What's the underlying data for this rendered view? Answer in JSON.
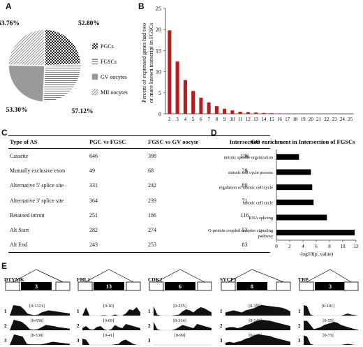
{
  "panels": {
    "a": "A",
    "b": "B",
    "c": "C",
    "d": "D",
    "e": "E"
  },
  "chart_data": [
    {
      "type": "pie",
      "categories": [
        "PGCs",
        "FGSCs",
        "GV oocytes",
        "MII oocytes"
      ],
      "values": [
        52.8,
        57.12,
        53.3,
        53.76
      ],
      "labels": [
        "52.80%",
        "57.12%",
        "53.30%",
        "53.76%"
      ],
      "colors": {
        "pgc": "#2b2b2b",
        "fgsc": "#cfcfcf",
        "gv": "#9a9a9a",
        "mii": "#e8e8e8"
      }
    },
    {
      "type": "bar",
      "categories": [
        "2",
        "3",
        "4",
        "5",
        "6",
        "7",
        "8",
        "9",
        "10",
        "11",
        "12",
        "13",
        "14",
        "15",
        "16",
        "17",
        "18",
        "19",
        "20",
        "21",
        "22",
        "23",
        "24",
        "25"
      ],
      "values": [
        19.8,
        12.4,
        8.0,
        5.4,
        3.8,
        2.7,
        1.8,
        1.2,
        0.8,
        0.5,
        0.4,
        0.3,
        0.2,
        0.15,
        0.1,
        0.08,
        0.06,
        0.05,
        0.04,
        0.03,
        0.03,
        0.02,
        0.02,
        0.02
      ],
      "tick_labels": [
        "2",
        "3",
        "4",
        "5",
        "6",
        "7",
        "8",
        "9",
        "10",
        "11",
        "12",
        "13",
        "14",
        "15",
        "16",
        "17",
        "18",
        "19",
        "20",
        "21",
        "22",
        "23",
        "24",
        "25"
      ],
      "ylabel": "Percent of expressed genes had two or more known transcript in FGSCs",
      "ylim": [
        0,
        25
      ],
      "yticks": [
        "0",
        "5",
        "10",
        "15",
        "20",
        "25"
      ],
      "color": "#b71c1c"
    },
    {
      "type": "table",
      "headers": [
        "Type of AS",
        "PGC vs FGSC",
        "FGSC vs GV oocyte",
        "Intersection"
      ],
      "rows": [
        [
          "Cassette",
          "646",
          "398",
          "196"
        ],
        [
          "Mutually exclusive exon",
          "49",
          "68",
          "28"
        ],
        [
          "Alternative 5' splice site",
          "331",
          "242",
          "80"
        ],
        [
          "Alternative 3' splice site",
          "364",
          "239",
          "71"
        ],
        [
          "Retained intron",
          "251",
          "186",
          "116"
        ],
        [
          "Alt Start",
          "282",
          "274",
          "53"
        ],
        [
          "Alt End",
          "243",
          "253",
          "83"
        ]
      ]
    },
    {
      "type": "bar",
      "orientation": "horizontal",
      "title": "GO enrichment in Intersection of FGSCs",
      "categories": [
        "mitotic spindle organization",
        "mitotic cell cycle process",
        "regulation of mitotic cell cycle",
        "mitotic cell cycle",
        "RNA splicing",
        "G-protein coupled receptor signaling pathway"
      ],
      "values": [
        3.4,
        5.2,
        5.4,
        5.6,
        7.6,
        11.8
      ],
      "xlabel": "-log10(p_value)",
      "xlim": [
        0,
        12
      ],
      "xticks": [
        "0",
        "2",
        "4",
        "6",
        "8",
        "10",
        "12"
      ]
    }
  ],
  "genes": [
    {
      "name": "DTYMK",
      "exon": "3",
      "ranges": [
        "[0-1321]",
        "[0-656]",
        "[0-530]"
      ]
    },
    {
      "name": "FHL1",
      "exon": "13",
      "ranges": [
        "[0-10]",
        "[0-69]",
        "[0-41]"
      ]
    },
    {
      "name": "CDK2",
      "exon": "6",
      "ranges": [
        "[0-235]",
        "[0-314]",
        "[0-99]"
      ]
    },
    {
      "name": "SYCP3",
      "exon": "8",
      "ranges": [
        "[0-359]",
        "[0-148]",
        "[0-137]"
      ]
    },
    {
      "name": "TBP",
      "exon": "3",
      "ranges": [
        "[0-101]",
        "[0-55]",
        "[0-73]"
      ]
    }
  ],
  "track_numbers": [
    "1",
    "2",
    "3"
  ]
}
